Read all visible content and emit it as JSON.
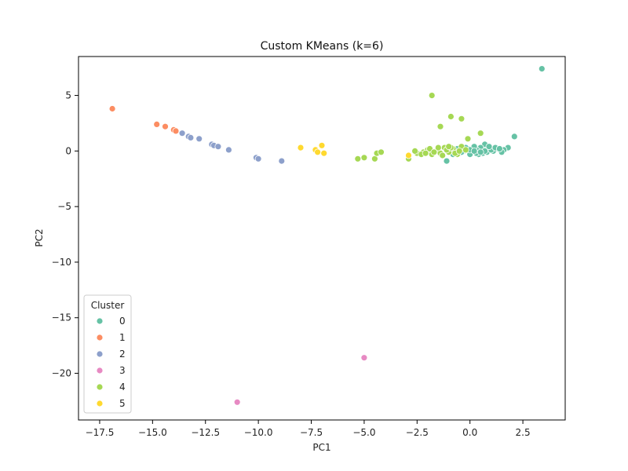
{
  "chart_data": {
    "type": "scatter",
    "title": "Custom KMeans (k=6)",
    "xlabel": "PC1",
    "ylabel": "PC2",
    "xlim": [
      -18.5,
      4.5
    ],
    "ylim": [
      -24.2,
      8.5
    ],
    "xticks": [
      -17.5,
      -15.0,
      -12.5,
      -10.0,
      -7.5,
      -5.0,
      -2.5,
      0.0,
      2.5
    ],
    "xtick_labels": [
      "−17.5",
      "−15.0",
      "−12.5",
      "−10.0",
      "−7.5",
      "−5.0",
      "−2.5",
      "0.0",
      "2.5"
    ],
    "yticks": [
      5,
      0,
      -5,
      -10,
      -15,
      -20
    ],
    "ytick_labels": [
      "5",
      "0",
      "−5",
      "−10",
      "−15",
      "−20"
    ],
    "grid": false,
    "legend": {
      "title": "Cluster",
      "placement": "lower-left"
    },
    "series": [
      {
        "name": "0",
        "color": "#66c2a5",
        "points": [
          [
            3.4,
            7.4
          ],
          [
            2.1,
            1.3
          ],
          [
            1.8,
            0.3
          ],
          [
            1.6,
            0.1
          ],
          [
            1.3,
            0.2
          ],
          [
            1.1,
            0.0
          ],
          [
            0.9,
            0.2
          ],
          [
            0.7,
            0.6
          ],
          [
            0.5,
            0.3
          ],
          [
            0.3,
            0.1
          ],
          [
            0.1,
            -0.1
          ],
          [
            -0.1,
            0.2
          ],
          [
            -0.3,
            0.0
          ],
          [
            -0.5,
            -0.2
          ],
          [
            -0.7,
            0.1
          ],
          [
            0.0,
            -0.3
          ],
          [
            0.2,
            0.4
          ],
          [
            0.6,
            -0.2
          ],
          [
            0.8,
            -0.1
          ],
          [
            1.0,
            0.1
          ],
          [
            -1.1,
            -0.9
          ],
          [
            0.4,
            -0.3
          ],
          [
            -0.2,
            0.3
          ],
          [
            1.5,
            -0.1
          ],
          [
            0.9,
            0.4
          ],
          [
            -0.6,
            0.2
          ],
          [
            0.3,
            -0.2
          ],
          [
            1.2,
            0.3
          ],
          [
            0.0,
            0.1
          ],
          [
            -0.4,
            -0.1
          ],
          [
            0.7,
            0.0
          ],
          [
            1.4,
            0.2
          ],
          [
            0.5,
            -0.1
          ],
          [
            -0.8,
            -0.3
          ],
          [
            0.2,
            0.0
          ]
        ]
      },
      {
        "name": "1",
        "color": "#fc8d62",
        "points": [
          [
            -16.9,
            3.8
          ],
          [
            -14.8,
            2.4
          ],
          [
            -14.4,
            2.2
          ],
          [
            -14.0,
            1.9
          ],
          [
            -13.9,
            1.8
          ]
        ]
      },
      {
        "name": "2",
        "color": "#8da0cb",
        "points": [
          [
            -13.6,
            1.6
          ],
          [
            -13.3,
            1.3
          ],
          [
            -13.2,
            1.2
          ],
          [
            -12.8,
            1.1
          ],
          [
            -12.2,
            0.6
          ],
          [
            -12.1,
            0.5
          ],
          [
            -11.9,
            0.4
          ],
          [
            -11.4,
            0.1
          ],
          [
            -10.1,
            -0.6
          ],
          [
            -10.0,
            -0.7
          ],
          [
            -8.9,
            -0.9
          ]
        ]
      },
      {
        "name": "3",
        "color": "#e78ac3",
        "points": [
          [
            -5.0,
            -18.6
          ],
          [
            -11.0,
            -22.6
          ]
        ]
      },
      {
        "name": "4",
        "color": "#a6d854",
        "points": [
          [
            -1.8,
            5.0
          ],
          [
            -0.9,
            3.1
          ],
          [
            -0.4,
            2.9
          ],
          [
            -1.4,
            2.2
          ],
          [
            0.5,
            1.6
          ],
          [
            -0.1,
            1.1
          ],
          [
            -5.3,
            -0.7
          ],
          [
            -5.0,
            -0.6
          ],
          [
            -4.5,
            -0.7
          ],
          [
            -4.4,
            -0.2
          ],
          [
            -4.2,
            -0.1
          ],
          [
            -2.9,
            -0.7
          ],
          [
            -2.5,
            -0.2
          ],
          [
            -2.2,
            -0.1
          ],
          [
            -2.0,
            0.1
          ],
          [
            -1.8,
            -0.3
          ],
          [
            -1.6,
            0.0
          ],
          [
            -1.4,
            -0.2
          ],
          [
            -1.2,
            0.3
          ],
          [
            -1.0,
            -0.1
          ],
          [
            -0.8,
            0.2
          ],
          [
            -0.6,
            -0.3
          ],
          [
            -0.4,
            0.4
          ],
          [
            -0.2,
            0.1
          ],
          [
            -1.9,
            0.2
          ],
          [
            -1.5,
            0.3
          ],
          [
            -1.1,
            0.1
          ],
          [
            -0.7,
            -0.2
          ],
          [
            -2.3,
            -0.3
          ],
          [
            -1.7,
            -0.1
          ],
          [
            -1.3,
            -0.4
          ],
          [
            -0.9,
            0.3
          ],
          [
            -0.5,
            0.0
          ],
          [
            -2.6,
            0.0
          ],
          [
            -2.1,
            -0.2
          ],
          [
            -1.0,
            0.4
          ]
        ]
      },
      {
        "name": "5",
        "color": "#ffd92f",
        "points": [
          [
            -8.0,
            0.3
          ],
          [
            -7.3,
            0.1
          ],
          [
            -7.2,
            -0.1
          ],
          [
            -7.0,
            0.5
          ],
          [
            -6.9,
            -0.2
          ],
          [
            -2.9,
            -0.4
          ]
        ]
      }
    ]
  }
}
